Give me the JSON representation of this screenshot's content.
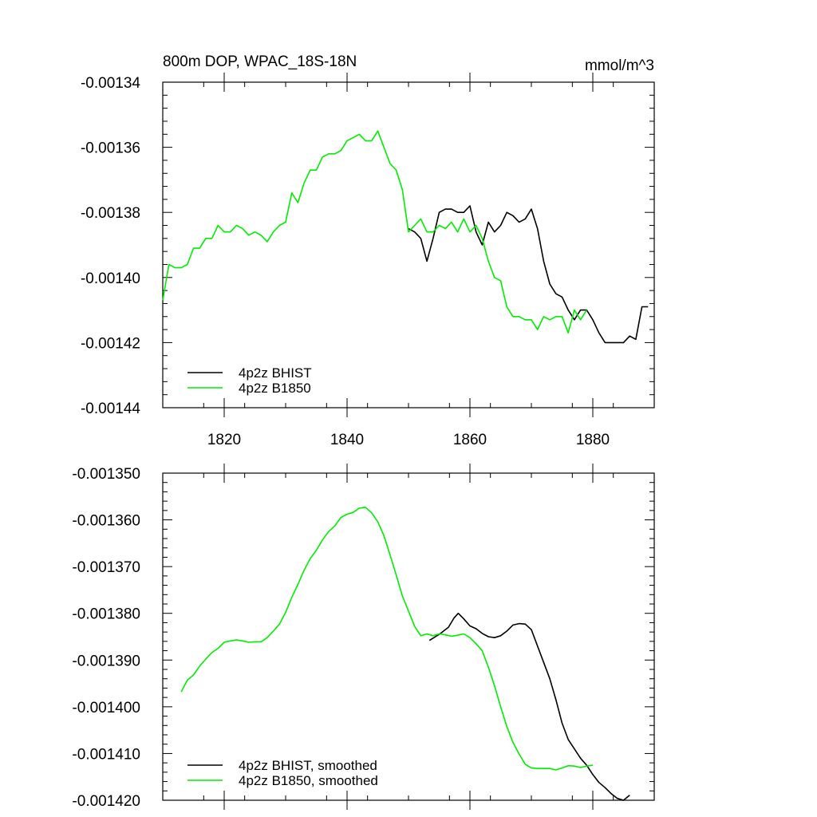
{
  "chart_data": [
    {
      "type": "line",
      "title": "800m DOP, WPAC_18S-18N",
      "units": "mmol/m^3",
      "xlim": [
        1810,
        1890
      ],
      "ylim": [
        -0.00144,
        -0.00134
      ],
      "x_ticks": [
        {
          "value": 1820,
          "label": "1820"
        },
        {
          "value": 1840,
          "label": "1840"
        },
        {
          "value": 1860,
          "label": "1860"
        },
        {
          "value": 1880,
          "label": "1880"
        }
      ],
      "y_ticks": [
        {
          "value": -0.00134,
          "label": "-0.00134"
        },
        {
          "value": -0.00136,
          "label": "-0.00136"
        },
        {
          "value": -0.00138,
          "label": "-0.00138"
        },
        {
          "value": -0.0014,
          "label": "-0.00140"
        },
        {
          "value": -0.00142,
          "label": "-0.00142"
        },
        {
          "value": -0.00144,
          "label": "-0.00144"
        }
      ],
      "legend_position": "bottom-left",
      "series": [
        {
          "name": "4p2z BHIST",
          "color": "#000000",
          "x": [
            1850,
            1851,
            1852,
            1853,
            1854,
            1855,
            1856,
            1857,
            1858,
            1859,
            1860,
            1861,
            1862,
            1863,
            1864,
            1865,
            1866,
            1867,
            1868,
            1869,
            1870,
            1871,
            1872,
            1873,
            1874,
            1875,
            1876,
            1877,
            1878,
            1879,
            1880,
            1881,
            1882,
            1883,
            1884,
            1885,
            1886,
            1887,
            1888,
            1889
          ],
          "y": [
            -0.001385,
            -0.001386,
            -0.001388,
            -0.001395,
            -0.001388,
            -0.00138,
            -0.001379,
            -0.001379,
            -0.00138,
            -0.00138,
            -0.001378,
            -0.001386,
            -0.00139,
            -0.001383,
            -0.001386,
            -0.001384,
            -0.00138,
            -0.001381,
            -0.001383,
            -0.001382,
            -0.001379,
            -0.001385,
            -0.001395,
            -0.001402,
            -0.001405,
            -0.001406,
            -0.00141,
            -0.001413,
            -0.00141,
            -0.00141,
            -0.001413,
            -0.001417,
            -0.00142,
            -0.00142,
            -0.00142,
            -0.00142,
            -0.001418,
            -0.001419,
            -0.001409,
            -0.001409
          ]
        },
        {
          "name": "4p2z B1850",
          "color": "#00ee00",
          "x": [
            1810,
            1811,
            1812,
            1813,
            1814,
            1815,
            1816,
            1817,
            1818,
            1819,
            1820,
            1821,
            1822,
            1823,
            1824,
            1825,
            1826,
            1827,
            1828,
            1829,
            1830,
            1831,
            1832,
            1833,
            1834,
            1835,
            1836,
            1837,
            1838,
            1839,
            1840,
            1841,
            1842,
            1843,
            1844,
            1845,
            1846,
            1847,
            1848,
            1849,
            1850,
            1851,
            1852,
            1853,
            1854,
            1855,
            1856,
            1857,
            1858,
            1859,
            1860,
            1861,
            1862,
            1863,
            1864,
            1865,
            1866,
            1867,
            1868,
            1869,
            1870,
            1871,
            1872,
            1873,
            1874,
            1875,
            1876,
            1877,
            1878,
            1879
          ],
          "y": [
            -0.001407,
            -0.001396,
            -0.001397,
            -0.001397,
            -0.001396,
            -0.001391,
            -0.001391,
            -0.001388,
            -0.001388,
            -0.001384,
            -0.001386,
            -0.001386,
            -0.001384,
            -0.001385,
            -0.001387,
            -0.001386,
            -0.001387,
            -0.001389,
            -0.001386,
            -0.001384,
            -0.001383,
            -0.001374,
            -0.001377,
            -0.001371,
            -0.001367,
            -0.001367,
            -0.001363,
            -0.001362,
            -0.001362,
            -0.001361,
            -0.001358,
            -0.001357,
            -0.001356,
            -0.001358,
            -0.001358,
            -0.001355,
            -0.00136,
            -0.001365,
            -0.001367,
            -0.001373,
            -0.001386,
            -0.001384,
            -0.001382,
            -0.001386,
            -0.001386,
            -0.001384,
            -0.001385,
            -0.001383,
            -0.001386,
            -0.001382,
            -0.001386,
            -0.001384,
            -0.001388,
            -0.001395,
            -0.0014,
            -0.001401,
            -0.001409,
            -0.001412,
            -0.001412,
            -0.001413,
            -0.001413,
            -0.001416,
            -0.001412,
            -0.001413,
            -0.001412,
            -0.001412,
            -0.001417,
            -0.00141,
            -0.001413,
            -0.00141
          ]
        }
      ]
    },
    {
      "type": "line",
      "title": "",
      "xlim": [
        1810,
        1890
      ],
      "ylim": [
        -0.00142,
        -0.00135
      ],
      "x_ticks": [
        {
          "value": 1820,
          "label": ""
        },
        {
          "value": 1840,
          "label": ""
        },
        {
          "value": 1860,
          "label": ""
        },
        {
          "value": 1880,
          "label": ""
        }
      ],
      "y_ticks": [
        {
          "value": -0.00135,
          "label": "-0.001350"
        },
        {
          "value": -0.00136,
          "label": "-0.001360"
        },
        {
          "value": -0.00137,
          "label": "-0.001370"
        },
        {
          "value": -0.00138,
          "label": "-0.001380"
        },
        {
          "value": -0.00139,
          "label": "-0.001390"
        },
        {
          "value": -0.0014,
          "label": "-0.001400"
        },
        {
          "value": -0.00141,
          "label": "-0.001410"
        },
        {
          "value": -0.00142,
          "label": "-0.001420"
        }
      ],
      "legend_position": "bottom-left",
      "series": [
        {
          "name": "4p2z BHIST, smoothed",
          "color": "#000000",
          "x": [
            1853.4,
            1855,
            1856.5,
            1857.4,
            1858.1,
            1859,
            1860,
            1861,
            1862,
            1863,
            1864,
            1865,
            1866,
            1867,
            1868,
            1869,
            1870,
            1871,
            1872,
            1873,
            1874,
            1875,
            1876,
            1877,
            1878,
            1879,
            1880,
            1881,
            1882,
            1883,
            1884,
            1885,
            1886
          ],
          "y": [
            -0.0013858,
            -0.0013845,
            -0.001383,
            -0.001381,
            -0.00138,
            -0.0013812,
            -0.0013827,
            -0.0013833,
            -0.0013843,
            -0.001385,
            -0.0013852,
            -0.0013848,
            -0.0013838,
            -0.0013825,
            -0.0013822,
            -0.0013823,
            -0.0013835,
            -0.001387,
            -0.0013905,
            -0.001394,
            -0.0013985,
            -0.0014035,
            -0.001407,
            -0.001409,
            -0.001411,
            -0.0014125,
            -0.0014145,
            -0.0014162,
            -0.0014173,
            -0.0014186,
            -0.0014196,
            -0.00142,
            -0.0014189
          ]
        },
        {
          "name": "4p2z B1850, smoothed",
          "color": "#00ee00",
          "x": [
            1813,
            1814,
            1815,
            1816,
            1817,
            1818,
            1819,
            1820,
            1821,
            1822,
            1823,
            1824,
            1825,
            1826,
            1827,
            1828,
            1829,
            1830,
            1831,
            1832,
            1833,
            1834,
            1835,
            1836,
            1837,
            1838,
            1839,
            1840,
            1841,
            1842,
            1843,
            1844,
            1845,
            1846,
            1847,
            1848,
            1849,
            1850,
            1851,
            1852,
            1853,
            1854,
            1855,
            1856,
            1857,
            1858,
            1859,
            1860,
            1861,
            1862,
            1863,
            1864,
            1865,
            1866,
            1867,
            1868,
            1869,
            1870,
            1871,
            1872,
            1873,
            1874,
            1875,
            1876,
            1877,
            1878,
            1879,
            1880
          ],
          "y": [
            -0.0013968,
            -0.0013943,
            -0.0013932,
            -0.0013913,
            -0.0013898,
            -0.0013884,
            -0.0013875,
            -0.0013862,
            -0.0013859,
            -0.0013857,
            -0.0013859,
            -0.0013862,
            -0.0013861,
            -0.0013861,
            -0.0013852,
            -0.0013838,
            -0.0013823,
            -0.0013798,
            -0.0013766,
            -0.0013738,
            -0.0013708,
            -0.0013683,
            -0.0013665,
            -0.0013643,
            -0.0013625,
            -0.0013613,
            -0.0013595,
            -0.0013588,
            -0.0013584,
            -0.0013575,
            -0.0013573,
            -0.0013585,
            -0.0013604,
            -0.0013634,
            -0.0013675,
            -0.0013718,
            -0.0013763,
            -0.0013795,
            -0.0013828,
            -0.0013848,
            -0.0013844,
            -0.0013848,
            -0.0013844,
            -0.0013846,
            -0.0013849,
            -0.0013847,
            -0.0013844,
            -0.0013852,
            -0.0013865,
            -0.001388,
            -0.0013915,
            -0.0013955,
            -0.0014,
            -0.0014042,
            -0.0014076,
            -0.0014101,
            -0.0014123,
            -0.0014131,
            -0.0014132,
            -0.0014132,
            -0.0014132,
            -0.0014135,
            -0.0014131,
            -0.0014126,
            -0.0014127,
            -0.001413,
            -0.0014127,
            -0.0014125
          ]
        }
      ]
    }
  ]
}
